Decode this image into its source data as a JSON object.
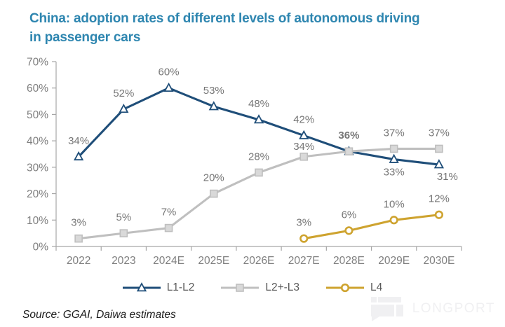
{
  "title": {
    "line1": "China: adoption rates of different levels of autonomous driving",
    "line2": "in passenger cars"
  },
  "source": "Source: GGAI, Daiwa estimates",
  "watermark": {
    "text": "LONGPORT"
  },
  "colors": {
    "title": "#2E86B0",
    "axis": "#A6A6A6",
    "tick_label": "#7F7F7F",
    "data_label": "#767676",
    "legend_label": "#595959",
    "source_text": "#1A1A1A",
    "watermark": "#F0F0F2",
    "background": "#FFFFFF"
  },
  "chart_data": {
    "type": "line",
    "title": "China: adoption rates of different levels of autonomous driving in passenger cars",
    "xlabel": "",
    "ylabel": "",
    "categories": [
      "2022",
      "2023",
      "2024E",
      "2025E",
      "2026E",
      "2027E",
      "2028E",
      "2029E",
      "2030E"
    ],
    "series": [
      {
        "name": "L1-L2",
        "color": "#1F4E79",
        "marker": "triangle",
        "marker_fill": "#FFFFFF",
        "values": [
          34,
          52,
          60,
          53,
          48,
          42,
          36,
          33,
          31
        ],
        "labels": [
          "34%",
          "52%",
          "60%",
          "53%",
          "48%",
          "42%",
          "36%",
          "33%",
          "31%"
        ]
      },
      {
        "name": "L2+-L3",
        "color": "#BFBFBF",
        "marker": "square",
        "marker_fill": "#D9D9D9",
        "values": [
          3,
          5,
          7,
          20,
          28,
          34,
          36,
          37,
          37
        ],
        "labels": [
          "3%",
          "5%",
          "7%",
          "20%",
          "28%",
          "34%",
          "36%",
          "37%",
          "37%"
        ]
      },
      {
        "name": "L4",
        "color": "#CEA32F",
        "marker": "circle",
        "marker_fill": "#FFFFFF",
        "values": [
          null,
          null,
          null,
          null,
          null,
          3,
          6,
          10,
          12
        ],
        "labels": [
          null,
          null,
          null,
          null,
          null,
          "3%",
          "6%",
          "10%",
          "12%"
        ]
      }
    ],
    "ylim": [
      0,
      70
    ],
    "ytick_step": 10,
    "ytick_labels": [
      "0%",
      "10%",
      "20%",
      "30%",
      "40%",
      "50%",
      "60%",
      "70%"
    ],
    "grid": false,
    "data_labels": true,
    "legend_position": "bottom",
    "label_overrides": [
      {
        "s": 0,
        "i": 6,
        "bold": true
      },
      {
        "s": 1,
        "i": 6,
        "hide": true
      },
      {
        "s": 1,
        "i": 5,
        "dy": 8
      },
      {
        "s": 0,
        "i": 7,
        "dy": 41
      },
      {
        "s": 0,
        "i": 8,
        "dy": 40,
        "dx": 12
      }
    ]
  }
}
